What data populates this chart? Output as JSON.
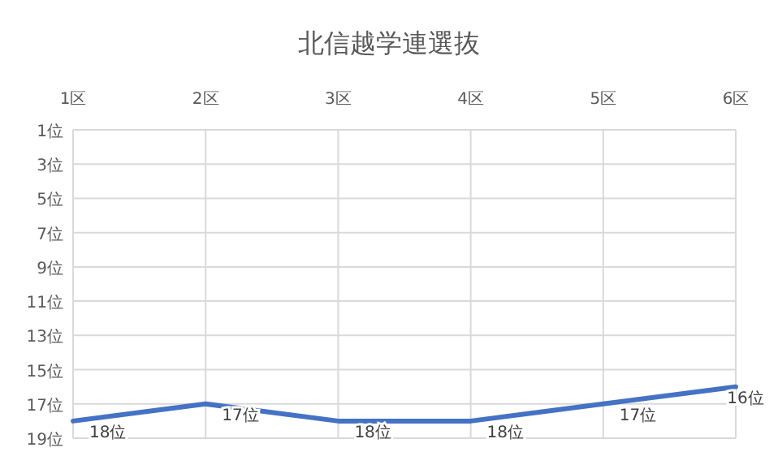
{
  "chart_data": {
    "type": "line",
    "title": "北信越学連選抜",
    "categories": [
      "1区",
      "2区",
      "3区",
      "4区",
      "5区",
      "6区"
    ],
    "series": [
      {
        "color": "#4472c4",
        "values": [
          18,
          17,
          18,
          18,
          17,
          16
        ]
      }
    ],
    "value_labels": [
      "18位",
      "17位",
      "18位",
      "18位",
      "17位",
      "16位"
    ],
    "ylim": [
      19,
      1
    ],
    "yticks": [
      {
        "value": 1,
        "label": "1位"
      },
      {
        "value": 3,
        "label": "3位"
      },
      {
        "value": 5,
        "label": "5位"
      },
      {
        "value": 7,
        "label": "7位"
      },
      {
        "value": 9,
        "label": "9位"
      },
      {
        "value": 11,
        "label": "11位"
      },
      {
        "value": 13,
        "label": "13位"
      },
      {
        "value": 15,
        "label": "15位"
      },
      {
        "value": 17,
        "label": "17位"
      },
      {
        "value": 19,
        "label": "19位"
      }
    ],
    "grid": true,
    "marker": "none",
    "line_style": "solid"
  }
}
